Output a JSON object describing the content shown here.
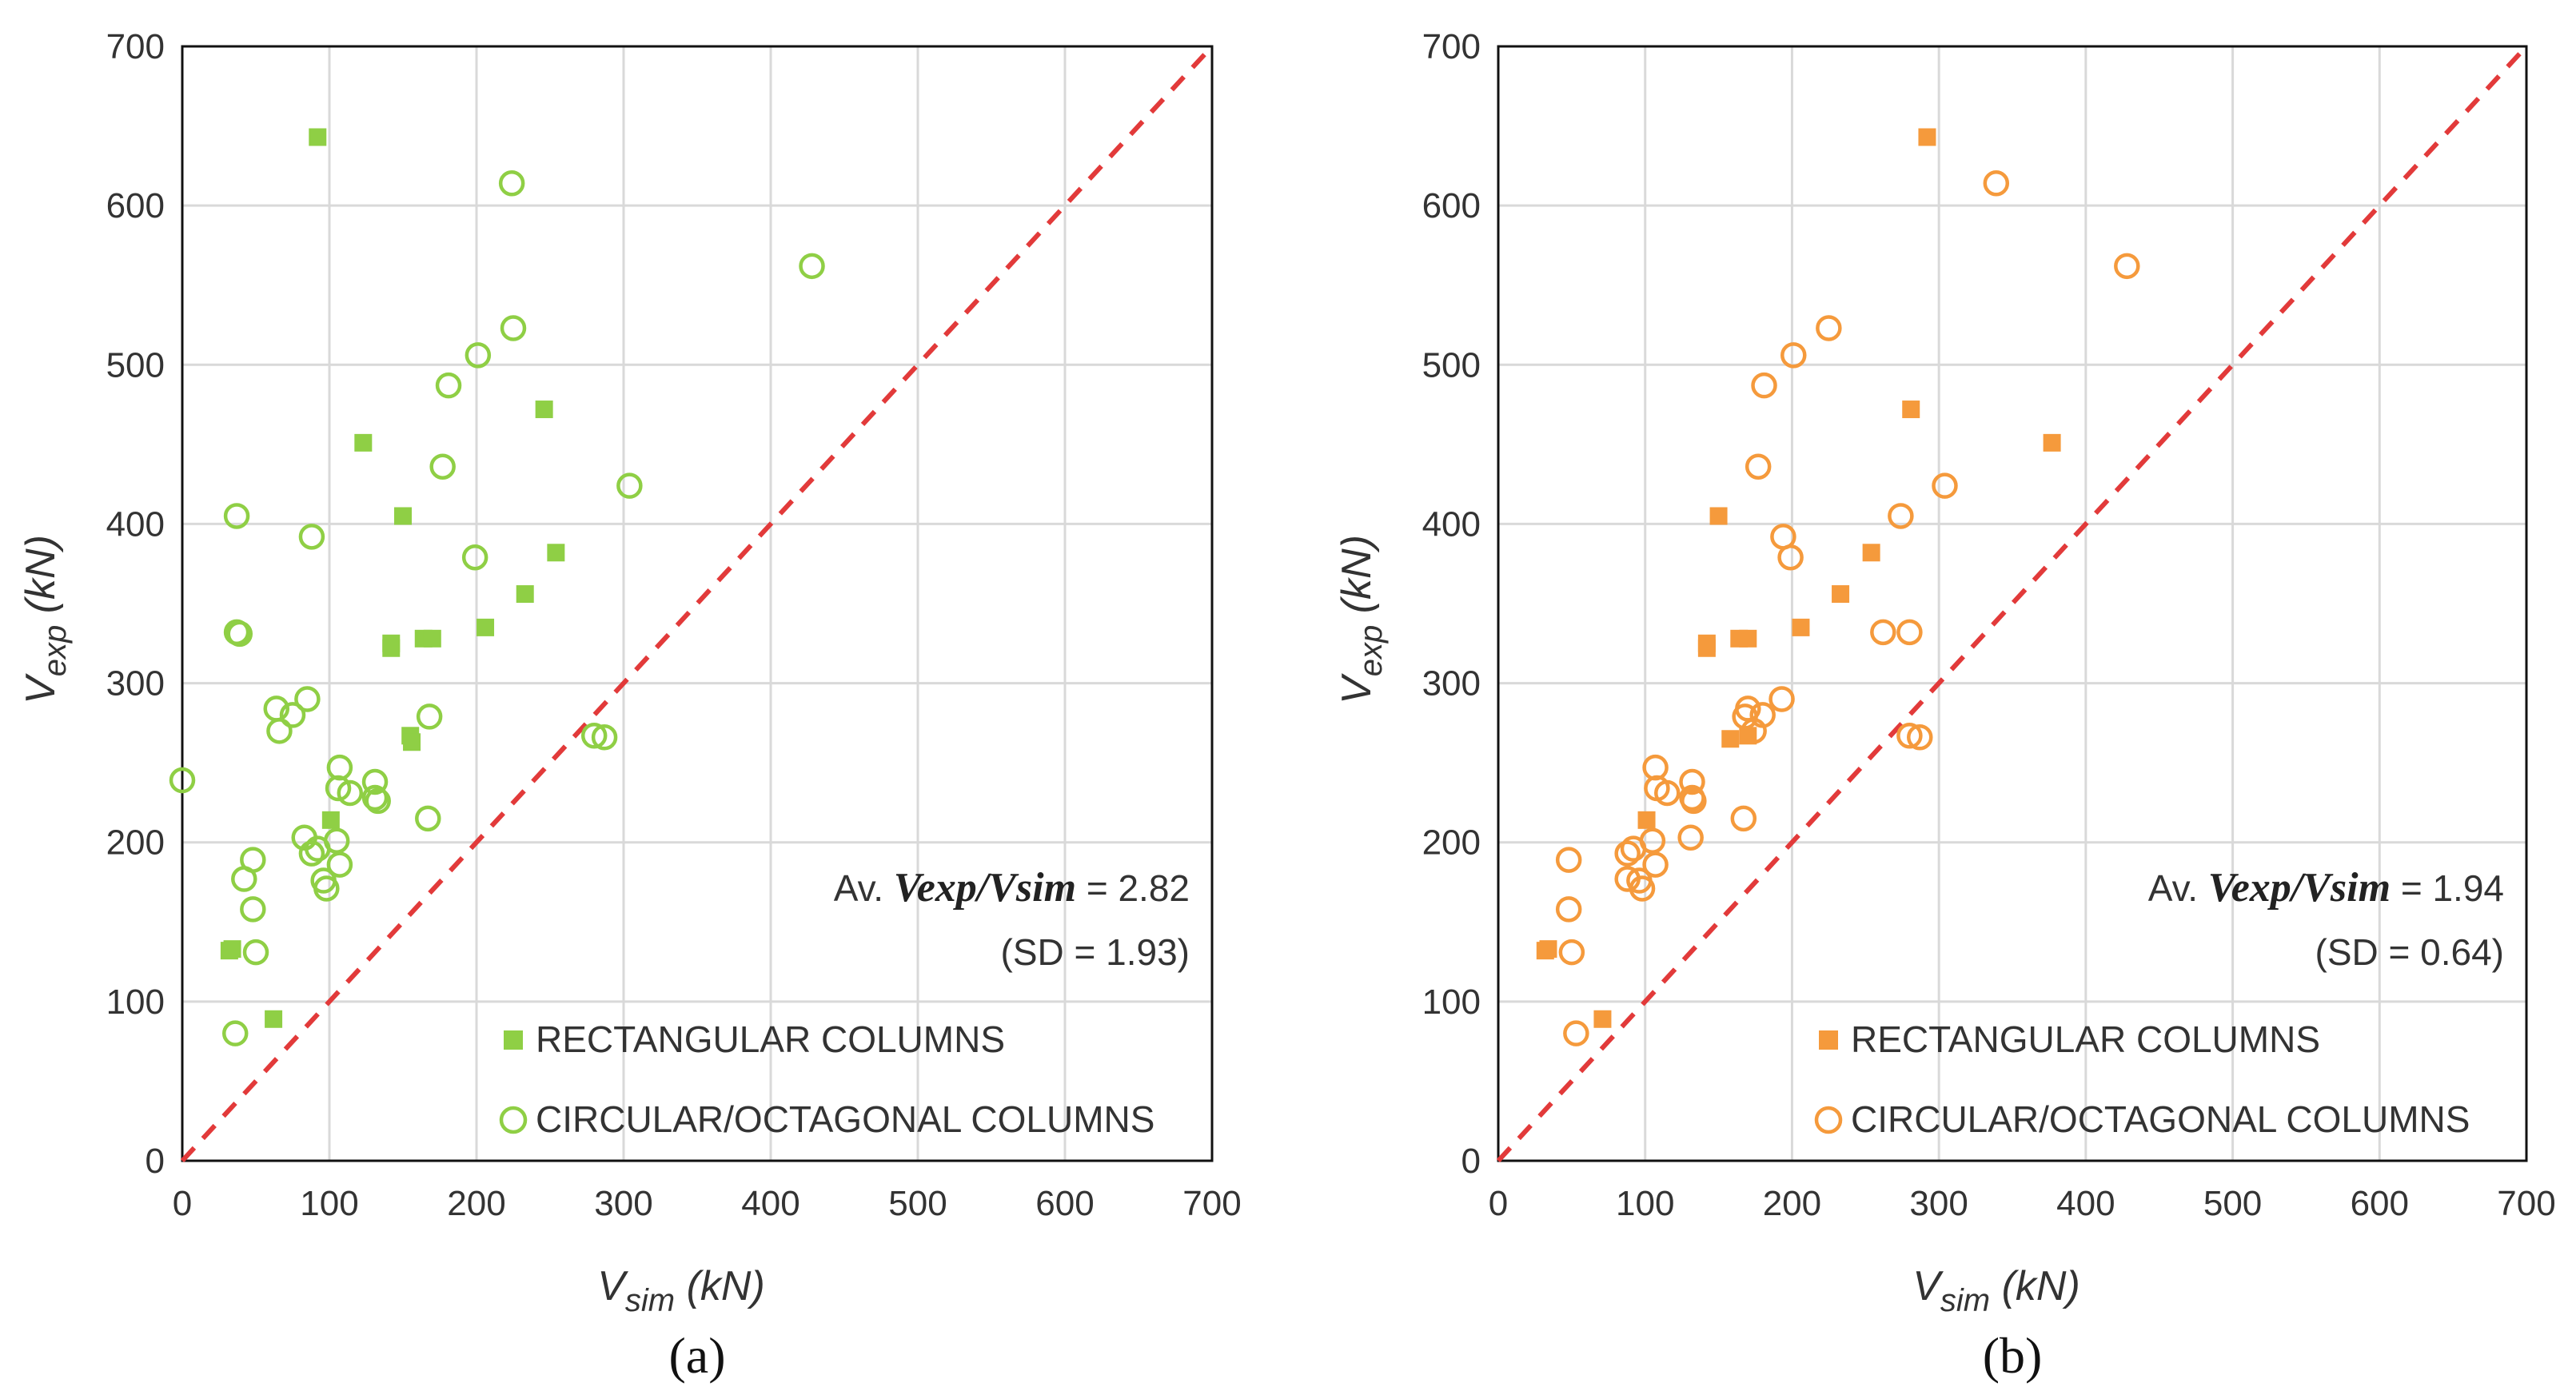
{
  "figure": {
    "panel_labels": [
      "(a)",
      "(b)"
    ],
    "colors": {
      "panel_a": "#8fcf45",
      "panel_b": "#f59a3c",
      "diagonal": "#e23a3a",
      "grid": "#d9d9d9",
      "frame": "#111111"
    }
  },
  "chart_data": [
    {
      "type": "scatter",
      "panel": "(a)",
      "xlabel": "V",
      "xlabel_sub": "sim",
      "xlabel_unit": "(kN)",
      "ylabel": "V",
      "ylabel_sub": "exp",
      "ylabel_unit": "(kN)",
      "xlim": [
        0,
        700
      ],
      "ylim": [
        0,
        700
      ],
      "xticks": [
        0,
        100,
        200,
        300,
        400,
        500,
        600,
        700
      ],
      "yticks": [
        0,
        100,
        200,
        300,
        400,
        500,
        600,
        700
      ],
      "grid": true,
      "diagonal": "y = x",
      "stats": {
        "prefix": "Av.",
        "ratio_label": "Vexp/Vsim",
        "eq": "= 2.82",
        "sd": "(SD = 1.93)"
      },
      "legend": [
        "RECTANGULAR COLUMNS",
        "CIRCULAR/OCTAGONAL COLUMNS"
      ],
      "series": [
        {
          "name": "RECTANGULAR COLUMNS",
          "marker": "square-filled",
          "points": [
            [
              92,
              643
            ],
            [
              123,
              451
            ],
            [
              246,
              472
            ],
            [
              150,
              405
            ],
            [
              254,
              382
            ],
            [
              233,
              356
            ],
            [
              206,
              335
            ],
            [
              164,
              328
            ],
            [
              170,
              328
            ],
            [
              142,
              325
            ],
            [
              142,
              322
            ],
            [
              155,
              267
            ],
            [
              156,
              263
            ],
            [
              101,
              214
            ],
            [
              32,
              132
            ],
            [
              34,
              133
            ],
            [
              62,
              89
            ]
          ]
        },
        {
          "name": "CIRCULAR/OCTAGONAL COLUMNS",
          "marker": "circle-open",
          "points": [
            [
              224,
              614
            ],
            [
              428,
              562
            ],
            [
              225,
              523
            ],
            [
              201,
              506
            ],
            [
              181,
              487
            ],
            [
              177,
              436
            ],
            [
              304,
              424
            ],
            [
              37,
              405
            ],
            [
              88,
              392
            ],
            [
              199,
              379
            ],
            [
              37,
              332
            ],
            [
              39,
              331
            ],
            [
              85,
              290
            ],
            [
              64,
              284
            ],
            [
              75,
              280
            ],
            [
              168,
              279
            ],
            [
              66,
              270
            ],
            [
              280,
              267
            ],
            [
              287,
              266
            ],
            [
              0,
              239
            ],
            [
              107,
              247
            ],
            [
              106,
              234
            ],
            [
              114,
              231
            ],
            [
              131,
              238
            ],
            [
              131,
              228
            ],
            [
              133,
              226
            ],
            [
              167,
              215
            ],
            [
              83,
              203
            ],
            [
              105,
              201
            ],
            [
              92,
              196
            ],
            [
              88,
              193
            ],
            [
              107,
              186
            ],
            [
              48,
              189
            ],
            [
              42,
              177
            ],
            [
              96,
              176
            ],
            [
              98,
              171
            ],
            [
              48,
              158
            ],
            [
              50,
              131
            ],
            [
              36,
              80
            ]
          ]
        }
      ]
    },
    {
      "type": "scatter",
      "panel": "(b)",
      "xlabel": "V",
      "xlabel_sub": "sim",
      "xlabel_unit": "(kN)",
      "ylabel": "V",
      "ylabel_sub": "exp",
      "ylabel_unit": "(kN)",
      "xlim": [
        0,
        700
      ],
      "ylim": [
        0,
        700
      ],
      "xticks": [
        0,
        100,
        200,
        300,
        400,
        500,
        600,
        700
      ],
      "yticks": [
        0,
        100,
        200,
        300,
        400,
        500,
        600,
        700
      ],
      "grid": true,
      "diagonal": "y = x",
      "stats": {
        "prefix": "Av.",
        "ratio_label": "Vexp/Vsim",
        "eq": "= 1.94",
        "sd": "(SD = 0.64)"
      },
      "legend": [
        "RECTANGULAR COLUMNS",
        "CIRCULAR/OCTAGONAL COLUMNS"
      ],
      "series": [
        {
          "name": "RECTANGULAR COLUMNS",
          "marker": "square-filled",
          "points": [
            [
              292,
              643
            ],
            [
              377,
              451
            ],
            [
              281,
              472
            ],
            [
              150,
              405
            ],
            [
              254,
              382
            ],
            [
              233,
              356
            ],
            [
              206,
              335
            ],
            [
              164,
              328
            ],
            [
              170,
              328
            ],
            [
              142,
              325
            ],
            [
              142,
              322
            ],
            [
              158,
              265
            ],
            [
              170,
              267
            ],
            [
              101,
              214
            ],
            [
              32,
              132
            ],
            [
              34,
              133
            ],
            [
              71,
              89
            ]
          ]
        },
        {
          "name": "CIRCULAR/OCTAGONAL COLUMNS",
          "marker": "circle-open",
          "points": [
            [
              339,
              614
            ],
            [
              428,
              562
            ],
            [
              225,
              523
            ],
            [
              201,
              506
            ],
            [
              181,
              487
            ],
            [
              177,
              436
            ],
            [
              304,
              424
            ],
            [
              274,
              405
            ],
            [
              194,
              392
            ],
            [
              199,
              379
            ],
            [
              262,
              332
            ],
            [
              280,
              332
            ],
            [
              193,
              290
            ],
            [
              170,
              284
            ],
            [
              168,
              279
            ],
            [
              180,
              280
            ],
            [
              174,
              270
            ],
            [
              280,
              267
            ],
            [
              287,
              266
            ],
            [
              107,
              247
            ],
            [
              108,
              234
            ],
            [
              115,
              231
            ],
            [
              132,
              238
            ],
            [
              132,
              228
            ],
            [
              133,
              226
            ],
            [
              167,
              215
            ],
            [
              131,
              203
            ],
            [
              105,
              201
            ],
            [
              92,
              196
            ],
            [
              88,
              193
            ],
            [
              107,
              186
            ],
            [
              48,
              189
            ],
            [
              88,
              177
            ],
            [
              96,
              176
            ],
            [
              98,
              171
            ],
            [
              48,
              158
            ],
            [
              50,
              131
            ],
            [
              53,
              80
            ]
          ]
        }
      ]
    }
  ]
}
